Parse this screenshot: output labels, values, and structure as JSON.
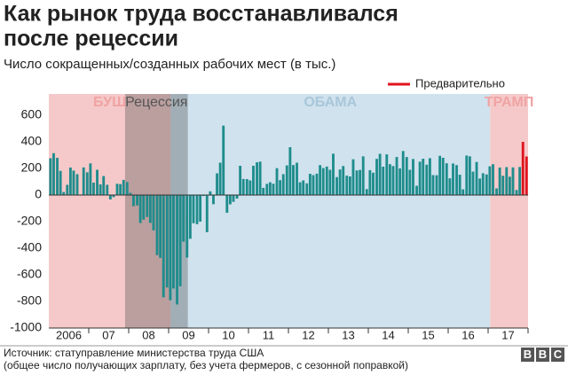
{
  "chart_data": {
    "type": "bar",
    "title": [
      "Как рынок труда восстанавливался",
      "после рецессии"
    ],
    "subtitle": "Число сокращенных/созданных рабочих мест (в тыс.)",
    "source": [
      "Источник: статуправление министерства труда США",
      "(общее число получающих зарплату, без учета фермеров, с сезонной поправкой)"
    ],
    "logo": [
      "B",
      "B",
      "C"
    ],
    "x": [
      2006.0,
      2006.08,
      2006.17,
      2006.25,
      2006.33,
      2006.42,
      2006.5,
      2006.58,
      2006.67,
      2006.75,
      2006.83,
      2006.92,
      2007.0,
      2007.08,
      2007.17,
      2007.25,
      2007.33,
      2007.42,
      2007.5,
      2007.58,
      2007.67,
      2007.75,
      2007.83,
      2007.92,
      2008.0,
      2008.08,
      2008.17,
      2008.25,
      2008.33,
      2008.42,
      2008.5,
      2008.58,
      2008.67,
      2008.75,
      2008.83,
      2008.92,
      2009.0,
      2009.08,
      2009.17,
      2009.25,
      2009.33,
      2009.42,
      2009.5,
      2009.58,
      2009.67,
      2009.75,
      2009.83,
      2009.92,
      2010.0,
      2010.08,
      2010.17,
      2010.25,
      2010.33,
      2010.42,
      2010.5,
      2010.58,
      2010.67,
      2010.75,
      2010.83,
      2010.92,
      2011.0,
      2011.08,
      2011.17,
      2011.25,
      2011.33,
      2011.42,
      2011.5,
      2011.58,
      2011.67,
      2011.75,
      2011.83,
      2011.92,
      2012.0,
      2012.08,
      2012.17,
      2012.25,
      2012.33,
      2012.42,
      2012.5,
      2012.58,
      2012.67,
      2012.75,
      2012.83,
      2012.92,
      2013.0,
      2013.08,
      2013.17,
      2013.25,
      2013.33,
      2013.42,
      2013.5,
      2013.58,
      2013.67,
      2013.75,
      2013.83,
      2013.92,
      2014.0,
      2014.08,
      2014.17,
      2014.25,
      2014.33,
      2014.42,
      2014.5,
      2014.58,
      2014.67,
      2014.75,
      2014.83,
      2014.92,
      2015.0,
      2015.08,
      2015.17,
      2015.25,
      2015.33,
      2015.42,
      2015.5,
      2015.58,
      2015.67,
      2015.75,
      2015.83,
      2015.92,
      2016.0,
      2016.08,
      2016.17,
      2016.25,
      2016.33,
      2016.42,
      2016.5,
      2016.58,
      2016.67,
      2016.75,
      2016.83,
      2016.92,
      2017.0,
      2017.08,
      2017.17,
      2017.25,
      2017.33,
      2017.42,
      2017.5,
      2017.58,
      2017.67,
      2017.75,
      2017.83,
      2017.92
    ],
    "series": [
      {
        "color": "#1f8c8c",
        "values": [
          277,
          315,
          280,
          182,
          23,
          77,
          207,
          184,
          157,
          4,
          208,
          171,
          238,
          93,
          190,
          80,
          143,
          77,
          -33,
          -16,
          85,
          82,
          114,
          98,
          17,
          -84,
          -78,
          -210,
          -185,
          -165,
          -209,
          -266,
          -452,
          -473,
          -769,
          -695,
          -791,
          -703,
          -823,
          -686,
          -351,
          -470,
          -329,
          -212,
          -219,
          -200,
          -7,
          -279,
          28,
          -69,
          163,
          243,
          522,
          -133,
          -70,
          -51,
          -27,
          220,
          121,
          120,
          110,
          220,
          246,
          251,
          54,
          84,
          96,
          85,
          202,
          112,
          157,
          223,
          360,
          226,
          243,
          96,
          110,
          88,
          160,
          150,
          161,
          225,
          203,
          214,
          190,
          311,
          135,
          192,
          218,
          146,
          140,
          269,
          185,
          189,
          291,
          45,
          187,
          168,
          272,
          310,
          213,
          306,
          232,
          218,
          286,
          200,
          331,
          286,
          190,
          271,
          70,
          251,
          273,
          228,
          277,
          150,
          149,
          295,
          280,
          239,
          126,
          237,
          225,
          153,
          43,
          297,
          291,
          176,
          249,
          124,
          164,
          155,
          216,
          232,
          50,
          207,
          145,
          210,
          138,
          208,
          38,
          211,
          null,
          null
        ]
      },
      {
        "name": "Предварительно",
        "color": "#e0141e",
        "values": [
          null,
          null,
          null,
          null,
          null,
          null,
          null,
          null,
          null,
          null,
          null,
          null,
          null,
          null,
          null,
          null,
          null,
          null,
          null,
          null,
          null,
          null,
          null,
          null,
          null,
          null,
          null,
          null,
          null,
          null,
          null,
          null,
          null,
          null,
          null,
          null,
          null,
          null,
          null,
          null,
          null,
          null,
          null,
          null,
          null,
          null,
          null,
          null,
          null,
          null,
          null,
          null,
          null,
          null,
          null,
          null,
          null,
          null,
          null,
          null,
          null,
          null,
          null,
          null,
          null,
          null,
          null,
          null,
          null,
          null,
          null,
          null,
          null,
          null,
          null,
          null,
          null,
          null,
          null,
          null,
          null,
          null,
          null,
          null,
          null,
          null,
          null,
          null,
          null,
          null,
          null,
          null,
          null,
          null,
          null,
          null,
          null,
          null,
          null,
          null,
          null,
          null,
          null,
          null,
          null,
          null,
          null,
          null,
          null,
          null,
          null,
          null,
          null,
          null,
          null,
          null,
          null,
          null,
          null,
          null,
          null,
          null,
          null,
          null,
          null,
          null,
          null,
          null,
          null,
          null,
          null,
          null,
          null,
          null,
          null,
          null,
          null,
          null,
          null,
          null,
          null,
          null,
          400,
          290
        ]
      }
    ],
    "periods": [
      {
        "label": "БУШ",
        "start": 2006,
        "end": 2009.05,
        "color": "#f5c9c9",
        "label_color": "#f0a3a3"
      },
      {
        "label": "ОБАМА",
        "start": 2009.05,
        "end": 2017.05,
        "color": "#cfe2ed",
        "label_color": "#a9c6da"
      },
      {
        "label": "ТРАМП",
        "start": 2017.05,
        "end": 2018,
        "color": "#f5c9c9",
        "label_color": "#f0a3a3"
      },
      {
        "label": "Рецессия",
        "start": 2007.91,
        "end": 2009.48,
        "color": "rgba(70,70,70,0.33)",
        "label_color": "#555555"
      }
    ],
    "xlim": [
      2006,
      2018
    ],
    "xticks": [
      {
        "value": 2006.5,
        "label": "2006"
      },
      {
        "value": 2007.5,
        "label": "07"
      },
      {
        "value": 2008.5,
        "label": "08"
      },
      {
        "value": 2009.5,
        "label": "09"
      },
      {
        "value": 2010.5,
        "label": "10"
      },
      {
        "value": 2011.5,
        "label": "11"
      },
      {
        "value": 2012.5,
        "label": "12"
      },
      {
        "value": 2013.5,
        "label": "13"
      },
      {
        "value": 2014.5,
        "label": "14"
      },
      {
        "value": 2015.5,
        "label": "15"
      },
      {
        "value": 2016.5,
        "label": "16"
      },
      {
        "value": 2017.5,
        "label": "17"
      }
    ],
    "ylim": [
      -1000,
      600
    ],
    "yticks": [
      600,
      400,
      200,
      0,
      -200,
      -400,
      -600,
      -800,
      -1000
    ],
    "legend": "top-right"
  }
}
